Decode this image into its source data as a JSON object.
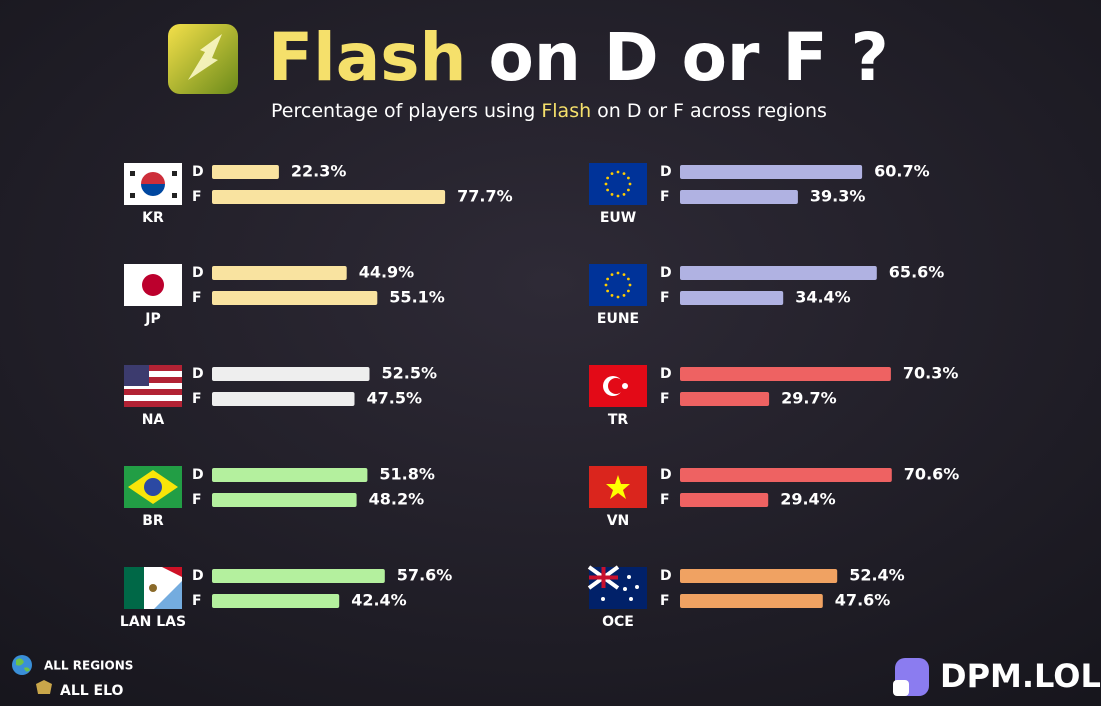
{
  "chart_data": {
    "type": "bar",
    "title": [
      "Flash",
      "on D or F ?"
    ],
    "subtitle": [
      "Percentage of players using ",
      "Flash",
      " on ",
      "D",
      " or ",
      "F",
      " across regions"
    ],
    "categories": [
      "D",
      "F"
    ],
    "series": [
      {
        "name": "KR",
        "color": "#f9e3a0",
        "values": [
          22.3,
          77.7
        ],
        "value_labels": [
          "22.3%",
          "77.7%"
        ]
      },
      {
        "name": "JP",
        "color": "#f9e3a0",
        "values": [
          44.9,
          55.1
        ],
        "value_labels": [
          "44.9%",
          "55.1%"
        ]
      },
      {
        "name": "NA",
        "color": "#eeeeee",
        "values": [
          52.5,
          47.5
        ],
        "value_labels": [
          "52.5%",
          "47.5%"
        ]
      },
      {
        "name": "BR",
        "color": "#b4f09e",
        "values": [
          51.8,
          48.2
        ],
        "value_labels": [
          "51.8%",
          "48.2%"
        ]
      },
      {
        "name": "LAN LAS",
        "color": "#b4f09e",
        "values": [
          57.6,
          42.4
        ],
        "value_labels": [
          "57.6%",
          "42.4%"
        ]
      },
      {
        "name": "EUW",
        "color": "#b0b2e2",
        "values": [
          60.7,
          39.3
        ],
        "value_labels": [
          "60.7%",
          "39.3%"
        ]
      },
      {
        "name": "EUNE",
        "color": "#b0b2e2",
        "values": [
          65.6,
          34.4
        ],
        "value_labels": [
          "65.6%",
          "34.4%"
        ]
      },
      {
        "name": "TR",
        "color": "#ee6262",
        "values": [
          70.3,
          29.7
        ],
        "value_labels": [
          "70.3%",
          "29.7%"
        ]
      },
      {
        "name": "VN",
        "color": "#ee6262",
        "values": [
          70.6,
          29.4
        ],
        "value_labels": [
          "70.6%",
          "29.4%"
        ]
      },
      {
        "name": "OCE",
        "color": "#f0a262",
        "values": [
          52.4,
          47.6
        ],
        "value_labels": [
          "52.4%",
          "47.6%"
        ]
      }
    ]
  },
  "filters": [
    "ALL REGIONS",
    "ALL ELO"
  ],
  "brand": "DPM.LOL"
}
